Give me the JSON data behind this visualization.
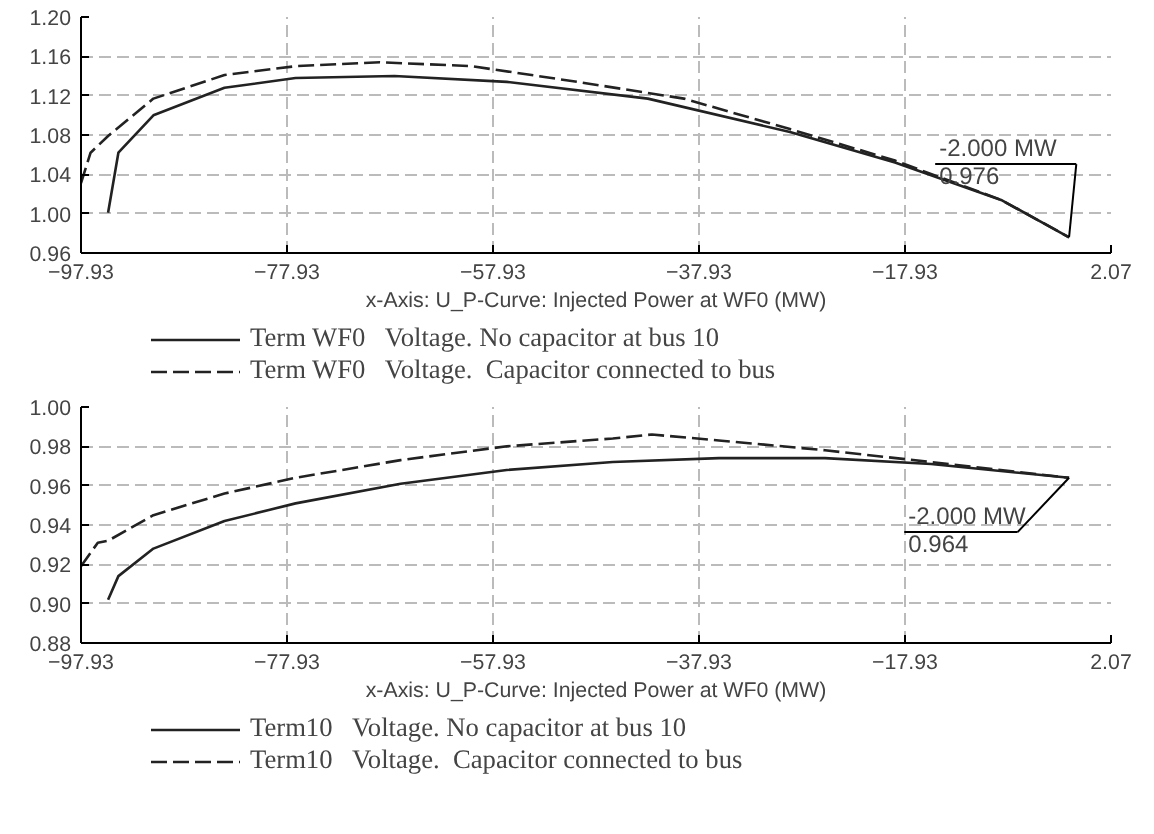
{
  "chart_data": [
    {
      "type": "line",
      "xlabel": "x-Axis: U_P-Curve: Injected Power at WF0 (MW)",
      "xlim": [
        -97.93,
        2.07
      ],
      "xticks": [
        -97.93,
        -77.93,
        -57.93,
        -37.93,
        -17.93,
        2.07
      ],
      "ylim": [
        0.96,
        1.2
      ],
      "yticks": [
        0.96,
        {
          "value": 1.0,
          "label": "1.00"
        },
        1.04,
        1.08,
        1.12,
        1.16,
        {
          "value": 1.2,
          "label": "1.20"
        }
      ],
      "grid": true,
      "legend": "bottom",
      "annotations": [
        {
          "text": "-2.000 MW",
          "x": -2.0,
          "y": 0.976
        },
        "0.976"
      ],
      "series": [
        {
          "name": "Term WF0   Voltage. No capacitor at bus 10",
          "color": "#222222",
          "line_style": "solid",
          "x": [
            -95.3,
            -94.3,
            -90.9,
            -84.0,
            -77.1,
            -67.5,
            -56.6,
            -42.9,
            -29.1,
            -18.9,
            -8.6,
            -2.0
          ],
          "values": [
            1.001,
            1.062,
            1.1,
            1.128,
            1.138,
            1.14,
            1.134,
            1.117,
            1.083,
            1.052,
            1.014,
            0.976
          ]
        },
        {
          "name": "Term WF0   Voltage.  Capacitor connected to bus",
          "color": "#222222",
          "line_style": "dashed",
          "x": [
            -97.93,
            -97.0,
            -95.3,
            -90.9,
            -84.0,
            -77.1,
            -68.9,
            -60.0,
            -49.7,
            -39.4,
            -29.1,
            -18.9,
            -8.6,
            -2.0
          ],
          "values": [
            1.031,
            1.062,
            1.079,
            1.117,
            1.141,
            1.15,
            1.154,
            1.15,
            1.134,
            1.117,
            1.086,
            1.054,
            1.014,
            0.976
          ]
        }
      ]
    },
    {
      "type": "line",
      "xlabel": "x-Axis: U_P-Curve: Injected Power at WF0 (MW)",
      "xlim": [
        -97.93,
        2.07
      ],
      "xticks": [
        -97.93,
        -77.93,
        -57.93,
        -37.93,
        -17.93,
        2.07
      ],
      "ylim": [
        0.88,
        1.0
      ],
      "yticks": [
        0.88,
        {
          "value": 0.9,
          "label": "0.90"
        },
        0.92,
        0.94,
        0.96,
        0.98,
        {
          "value": 1.0,
          "label": "1.00"
        }
      ],
      "grid": true,
      "legend": "bottom",
      "annotations": [
        {
          "text": "-2.000 MW",
          "x": -2.0,
          "y": 0.964
        },
        "0.964"
      ],
      "series": [
        {
          "name": "Term10   Voltage. No capacitor at bus 10",
          "color": "#222222",
          "line_style": "solid",
          "x": [
            -95.3,
            -94.3,
            -90.9,
            -84.0,
            -77.1,
            -66.9,
            -56.6,
            -46.3,
            -36.0,
            -25.7,
            -15.4,
            -2.0
          ],
          "values": [
            0.902,
            0.914,
            0.928,
            0.942,
            0.951,
            0.961,
            0.968,
            0.972,
            0.974,
            0.974,
            0.971,
            0.964
          ]
        },
        {
          "name": "Term10   Voltage.  Capacitor connected to bus",
          "color": "#222222",
          "line_style": "dashed",
          "x": [
            -97.93,
            -96.3,
            -95.3,
            -90.9,
            -84.0,
            -77.1,
            -66.9,
            -56.6,
            -46.3,
            -42.5,
            -36.0,
            -25.7,
            -15.4,
            -2.0
          ],
          "values": [
            0.919,
            0.931,
            0.932,
            0.945,
            0.956,
            0.964,
            0.973,
            0.98,
            0.984,
            0.986,
            0.983,
            0.978,
            0.972,
            0.964
          ]
        }
      ]
    }
  ]
}
